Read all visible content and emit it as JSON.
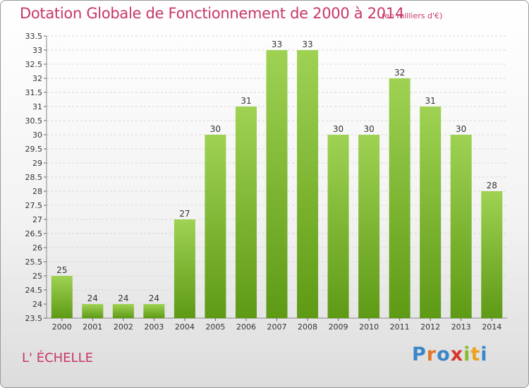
{
  "title": "Dotation Globale de Fonctionnement de 2000 à 2014",
  "units": "(en milliers d'€)",
  "commune": "L' ÉCHELLE",
  "logo": {
    "letters": [
      "P",
      "r",
      "o",
      "x",
      "i",
      "t",
      "i"
    ],
    "colors": [
      "#3a86c8",
      "#e3762a",
      "#3a86c8",
      "#d9342b",
      "#8bbb2d",
      "#e8a21f",
      "#3a86c8"
    ]
  },
  "colors": {
    "bar_top": "#9fd253",
    "bar_bottom": "#5e9a15",
    "accent": "#c8366b"
  },
  "chart_data": {
    "type": "bar",
    "title": "Dotation Globale de Fonctionnement de 2000 à 2014",
    "categories": [
      "2000",
      "2001",
      "2002",
      "2003",
      "2004",
      "2005",
      "2006",
      "2007",
      "2008",
      "2009",
      "2010",
      "2011",
      "2012",
      "2013",
      "2014"
    ],
    "values": [
      25,
      24,
      24,
      24,
      27,
      30,
      31,
      33,
      33,
      30,
      30,
      32,
      31,
      30,
      28
    ],
    "labels": [
      "25",
      "24",
      "24",
      "24",
      "27",
      "30",
      "31",
      "33",
      "33",
      "30",
      "30",
      "32",
      "31",
      "30",
      "28"
    ],
    "yticks": [
      "23.5",
      "24",
      "24.5",
      "25",
      "25.5",
      "26",
      "26.5",
      "27",
      "27.5",
      "28",
      "28.5",
      "29",
      "29.5",
      "30",
      "30.5",
      "31",
      "31.5",
      "32",
      "32.5",
      "33",
      "33.5"
    ],
    "ylim": [
      23.5,
      33.5
    ],
    "grid": true
  }
}
